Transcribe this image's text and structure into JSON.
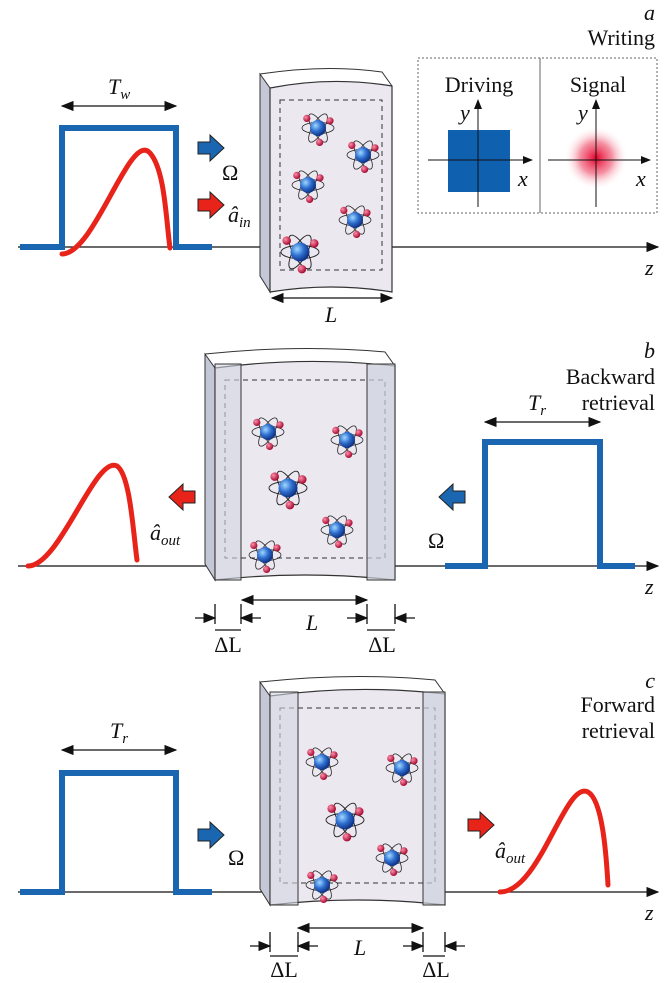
{
  "panels": [
    {
      "letter": "a",
      "title": [
        "Writing"
      ],
      "pulse_label": {
        "main": "T",
        "sub": "w"
      },
      "driving_label": "Ω",
      "signal_label": {
        "main": "â",
        "sub": "in"
      },
      "length_label": "L",
      "axis_label": "z",
      "inset": {
        "left_title": "Driving",
        "right_title": "Signal",
        "left_y": "y",
        "left_x": "x",
        "right_y": "y",
        "right_x": "x"
      }
    },
    {
      "letter": "b",
      "title": [
        "Backward",
        "retrieval"
      ],
      "pulse_label": {
        "main": "T",
        "sub": "r"
      },
      "driving_label": "Ω",
      "signal_label": {
        "main": "â",
        "sub": "out"
      },
      "length_label": "L",
      "delta_labels": [
        "ΔL",
        "ΔL"
      ],
      "axis_label": "z"
    },
    {
      "letter": "c",
      "title": [
        "Forward",
        "retrieval"
      ],
      "pulse_label": {
        "main": "T",
        "sub": "r"
      },
      "driving_label": "Ω",
      "signal_label": {
        "main": "â",
        "sub": "out"
      },
      "length_label": "L",
      "delta_labels": [
        "ΔL",
        "ΔL"
      ],
      "axis_label": "z"
    }
  ]
}
